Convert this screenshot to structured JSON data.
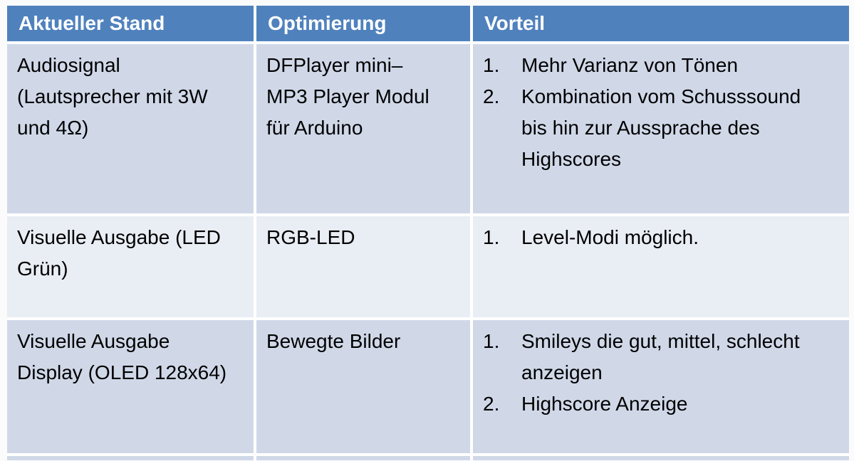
{
  "colors": {
    "header_bg": "#4F81BD",
    "band_dark": "#D0D8E8",
    "band_light": "#E9EDF4",
    "cell_border": "#FFFFFF",
    "header_text": "#FFFFFF",
    "body_text": "#000000"
  },
  "table": {
    "headers": [
      "Aktueller Stand",
      "Optimierung",
      "Vorteil"
    ],
    "rows": [
      {
        "aktueller_stand": "Audiosignal (Lautsprecher mit 3W und 4Ω)",
        "optimierung": "DFPlayer mini– MP3 Player Modul für Arduino",
        "vorteile": [
          {
            "num": "1.",
            "text": "Mehr Varianz von Tönen"
          },
          {
            "num": "2.",
            "text": "Kombination vom Schusssound bis hin zur Aussprache des Highscores"
          }
        ]
      },
      {
        "aktueller_stand": "Visuelle Ausgabe (LED Grün)",
        "optimierung": "RGB-LED",
        "vorteile": [
          {
            "num": "1.",
            "text": "Level-Modi möglich."
          }
        ]
      },
      {
        "aktueller_stand": "Visuelle Ausgabe Display (OLED 128x64)",
        "optimierung": "Bewegte Bilder",
        "vorteile": [
          {
            "num": "1.",
            "text": "Smileys die gut, mittel, schlecht anzeigen"
          },
          {
            "num": "2.",
            "text": "Highscore Anzeige"
          }
        ]
      }
    ]
  }
}
